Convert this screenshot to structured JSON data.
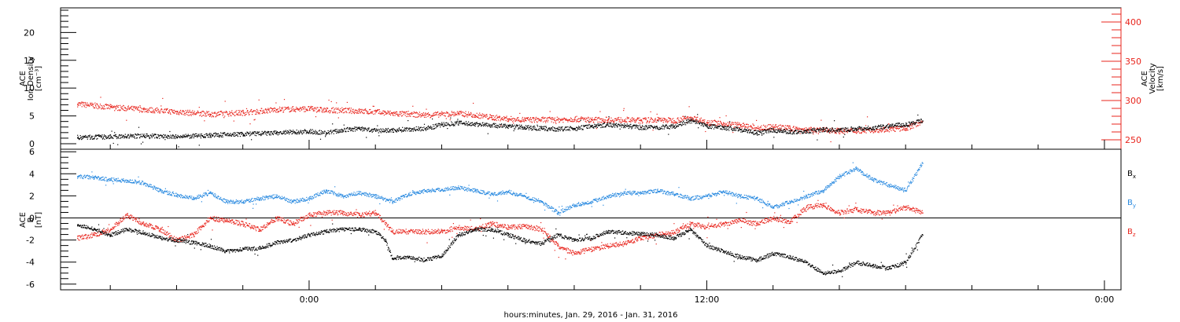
{
  "chart_data": [
    {
      "type": "scatter",
      "panel": "top",
      "ylabel": [
        "ACE",
        "Ion Density",
        "[cm⁻³]"
      ],
      "ylim": [
        0,
        24
      ],
      "yticks": [
        0,
        5,
        10,
        15,
        20
      ],
      "y2label": [
        "ACE",
        "Velocity",
        "[km/s]"
      ],
      "y2lim": [
        245,
        415
      ],
      "y2ticks": [
        250,
        300,
        350,
        400
      ],
      "colors": {
        "density": "#000000",
        "velocity": "#e8241c"
      },
      "series": [
        {
          "name": "",
          "axis": "left",
          "color": "#000000",
          "points": [
            [
              -7.0,
              1.2
            ],
            [
              -6.0,
              1.3
            ],
            [
              -5.0,
              1.5
            ],
            [
              -4.0,
              1.3
            ],
            [
              -3.0,
              1.6
            ],
            [
              -2.0,
              1.8
            ],
            [
              -1.0,
              2.0
            ],
            [
              0.0,
              2.3
            ],
            [
              0.5,
              2.0
            ],
            [
              1.0,
              2.5
            ],
            [
              1.5,
              2.8
            ],
            [
              2.0,
              2.4
            ],
            [
              2.5,
              2.5
            ],
            [
              3.0,
              2.7
            ],
            [
              3.5,
              2.8
            ],
            [
              4.0,
              3.5
            ],
            [
              4.5,
              3.8
            ],
            [
              5.0,
              3.6
            ],
            [
              5.5,
              3.4
            ],
            [
              6.0,
              3.2
            ],
            [
              6.5,
              3.0
            ],
            [
              7.0,
              2.8
            ],
            [
              7.5,
              2.7
            ],
            [
              8.0,
              2.8
            ],
            [
              8.5,
              3.2
            ],
            [
              9.0,
              3.5
            ],
            [
              9.5,
              3.3
            ],
            [
              10.0,
              3.0
            ],
            [
              10.5,
              3.0
            ],
            [
              11.0,
              3.2
            ],
            [
              11.5,
              4.2
            ],
            [
              12.0,
              3.2
            ],
            [
              12.5,
              3.0
            ],
            [
              13.0,
              2.6
            ],
            [
              13.5,
              2.0
            ],
            [
              14.0,
              2.5
            ],
            [
              14.5,
              2.2
            ],
            [
              15.0,
              2.3
            ],
            [
              15.5,
              2.6
            ],
            [
              16.0,
              2.5
            ],
            [
              16.5,
              2.8
            ],
            [
              17.0,
              2.9
            ],
            [
              17.5,
              3.3
            ],
            [
              18.0,
              3.5
            ],
            [
              18.5,
              4.2
            ]
          ]
        },
        {
          "name": "",
          "axis": "right",
          "color": "#e8241c",
          "points": [
            [
              -7.0,
              296
            ],
            [
              -6.0,
              292
            ],
            [
              -5.0,
              289
            ],
            [
              -4.0,
              286
            ],
            [
              -3.0,
              283
            ],
            [
              -2.0,
              285
            ],
            [
              -1.0,
              289
            ],
            [
              0.0,
              290
            ],
            [
              0.5,
              288
            ],
            [
              1.0,
              288
            ],
            [
              1.5,
              287
            ],
            [
              2.0,
              286
            ],
            [
              2.5,
              284
            ],
            [
              3.0,
              283
            ],
            [
              3.5,
              282
            ],
            [
              4.0,
              283
            ],
            [
              4.5,
              284
            ],
            [
              5.0,
              282
            ],
            [
              5.5,
              279
            ],
            [
              6.0,
              277
            ],
            [
              6.5,
              276
            ],
            [
              7.0,
              276
            ],
            [
              7.5,
              276
            ],
            [
              8.0,
              277
            ],
            [
              8.5,
              276
            ],
            [
              9.0,
              276
            ],
            [
              9.5,
              276
            ],
            [
              10.0,
              275
            ],
            [
              10.5,
              276
            ],
            [
              11.0,
              275
            ],
            [
              11.5,
              279
            ],
            [
              12.0,
              273
            ],
            [
              12.5,
              271
            ],
            [
              13.0,
              269
            ],
            [
              13.5,
              265
            ],
            [
              14.0,
              267
            ],
            [
              14.5,
              265
            ],
            [
              15.0,
              263
            ],
            [
              15.5,
              263
            ],
            [
              16.0,
              262
            ],
            [
              16.5,
              262
            ],
            [
              17.0,
              263
            ],
            [
              17.5,
              264
            ],
            [
              18.0,
              265
            ],
            [
              18.5,
              274
            ]
          ]
        }
      ]
    },
    {
      "type": "scatter",
      "panel": "bottom",
      "ylabel": [
        "ACE",
        "B",
        "[nT]"
      ],
      "ylim": [
        -6.3,
        6.3
      ],
      "yticks": [
        -6,
        -4,
        -2,
        0,
        2,
        4,
        6
      ],
      "zero_line": true,
      "series": [
        {
          "name": "Bx",
          "color": "#000000",
          "points": [
            [
              -7.0,
              -0.6
            ],
            [
              -6.5,
              -1.0
            ],
            [
              -6.0,
              -1.5
            ],
            [
              -5.5,
              -1.0
            ],
            [
              -5.0,
              -1.3
            ],
            [
              -4.5,
              -1.8
            ],
            [
              -4.0,
              -2.0
            ],
            [
              -3.5,
              -2.2
            ],
            [
              -3.0,
              -2.5
            ],
            [
              -2.5,
              -3.0
            ],
            [
              -2.0,
              -2.8
            ],
            [
              -1.5,
              -2.7
            ],
            [
              -1.0,
              -2.2
            ],
            [
              -0.5,
              -2.0
            ],
            [
              0.0,
              -1.5
            ],
            [
              0.5,
              -1.2
            ],
            [
              1.0,
              -1.0
            ],
            [
              1.5,
              -1.0
            ],
            [
              2.0,
              -1.2
            ],
            [
              2.3,
              -2.0
            ],
            [
              2.5,
              -3.6
            ],
            [
              3.0,
              -3.5
            ],
            [
              3.5,
              -3.8
            ],
            [
              4.0,
              -3.4
            ],
            [
              4.5,
              -1.5
            ],
            [
              5.0,
              -1.0
            ],
            [
              5.5,
              -1.0
            ],
            [
              6.0,
              -1.5
            ],
            [
              6.5,
              -2.0
            ],
            [
              7.0,
              -2.3
            ],
            [
              7.5,
              -1.5
            ],
            [
              8.0,
              -2.0
            ],
            [
              8.5,
              -1.8
            ],
            [
              9.0,
              -1.2
            ],
            [
              9.5,
              -1.3
            ],
            [
              10.0,
              -1.4
            ],
            [
              10.5,
              -1.5
            ],
            [
              11.0,
              -1.8
            ],
            [
              11.5,
              -1.0
            ],
            [
              12.0,
              -2.5
            ],
            [
              12.5,
              -3.0
            ],
            [
              13.0,
              -3.5
            ],
            [
              13.5,
              -3.8
            ],
            [
              14.0,
              -3.2
            ],
            [
              14.5,
              -3.5
            ],
            [
              15.0,
              -4.0
            ],
            [
              15.5,
              -5.0
            ],
            [
              16.0,
              -4.8
            ],
            [
              16.5,
              -4.0
            ],
            [
              17.0,
              -4.3
            ],
            [
              17.5,
              -4.5
            ],
            [
              18.0,
              -4.0
            ],
            [
              18.5,
              -1.5
            ]
          ]
        },
        {
          "name": "By",
          "color": "#2a8ae0",
          "points": [
            [
              -7.0,
              3.8
            ],
            [
              -6.5,
              3.7
            ],
            [
              -6.0,
              3.5
            ],
            [
              -5.5,
              3.4
            ],
            [
              -5.0,
              3.2
            ],
            [
              -4.5,
              2.5
            ],
            [
              -4.0,
              2.1
            ],
            [
              -3.5,
              1.8
            ],
            [
              -3.0,
              2.3
            ],
            [
              -2.5,
              1.5
            ],
            [
              -2.0,
              1.5
            ],
            [
              -1.5,
              1.8
            ],
            [
              -1.0,
              2.0
            ],
            [
              -0.5,
              1.5
            ],
            [
              0.0,
              1.8
            ],
            [
              0.5,
              2.5
            ],
            [
              1.0,
              2.0
            ],
            [
              1.5,
              2.3
            ],
            [
              2.0,
              2.0
            ],
            [
              2.5,
              1.5
            ],
            [
              3.0,
              2.2
            ],
            [
              3.5,
              2.5
            ],
            [
              4.0,
              2.6
            ],
            [
              4.5,
              2.8
            ],
            [
              5.0,
              2.5
            ],
            [
              5.5,
              2.2
            ],
            [
              6.0,
              2.4
            ],
            [
              6.5,
              2.0
            ],
            [
              7.0,
              1.5
            ],
            [
              7.5,
              0.5
            ],
            [
              8.0,
              1.2
            ],
            [
              8.5,
              1.5
            ],
            [
              9.0,
              2.0
            ],
            [
              9.5,
              2.3
            ],
            [
              10.0,
              2.3
            ],
            [
              10.5,
              2.5
            ],
            [
              11.0,
              2.2
            ],
            [
              11.5,
              1.8
            ],
            [
              12.0,
              2.0
            ],
            [
              12.5,
              2.4
            ],
            [
              13.0,
              2.0
            ],
            [
              13.5,
              1.8
            ],
            [
              14.0,
              1.0
            ],
            [
              14.5,
              1.5
            ],
            [
              15.0,
              2.0
            ],
            [
              15.5,
              2.5
            ],
            [
              16.0,
              3.8
            ],
            [
              16.5,
              4.5
            ],
            [
              17.0,
              3.5
            ],
            [
              17.5,
              3.0
            ],
            [
              18.0,
              2.5
            ],
            [
              18.5,
              5.0
            ]
          ]
        },
        {
          "name": "Bz",
          "color": "#e8241c",
          "points": [
            [
              -7.0,
              -1.8
            ],
            [
              -6.5,
              -1.5
            ],
            [
              -6.0,
              -1.0
            ],
            [
              -5.5,
              0.3
            ],
            [
              -5.0,
              -0.5
            ],
            [
              -4.5,
              -1.0
            ],
            [
              -4.0,
              -2.0
            ],
            [
              -3.5,
              -1.5
            ],
            [
              -3.0,
              0.0
            ],
            [
              -2.5,
              -0.2
            ],
            [
              -2.0,
              -0.5
            ],
            [
              -1.5,
              -1.0
            ],
            [
              -1.0,
              0.0
            ],
            [
              -0.5,
              -0.5
            ],
            [
              0.0,
              0.3
            ],
            [
              0.5,
              0.5
            ],
            [
              1.0,
              0.5
            ],
            [
              1.5,
              0.3
            ],
            [
              2.0,
              0.5
            ],
            [
              2.5,
              -1.2
            ],
            [
              3.0,
              -1.2
            ],
            [
              3.5,
              -1.2
            ],
            [
              4.0,
              -1.2
            ],
            [
              4.5,
              -0.8
            ],
            [
              5.0,
              -1.0
            ],
            [
              5.5,
              -0.5
            ],
            [
              6.0,
              -0.8
            ],
            [
              6.5,
              -0.7
            ],
            [
              7.0,
              -1.0
            ],
            [
              7.5,
              -2.5
            ],
            [
              8.0,
              -3.2
            ],
            [
              8.5,
              -2.8
            ],
            [
              9.0,
              -2.5
            ],
            [
              9.5,
              -2.3
            ],
            [
              10.0,
              -1.8
            ],
            [
              10.5,
              -1.5
            ],
            [
              11.0,
              -1.3
            ],
            [
              11.5,
              -0.5
            ],
            [
              12.0,
              -0.8
            ],
            [
              12.5,
              -0.5
            ],
            [
              13.0,
              -0.2
            ],
            [
              13.5,
              -0.5
            ],
            [
              14.0,
              0.0
            ],
            [
              14.5,
              -0.3
            ],
            [
              15.0,
              1.0
            ],
            [
              15.5,
              1.2
            ],
            [
              16.0,
              0.5
            ],
            [
              16.5,
              0.8
            ],
            [
              17.0,
              0.5
            ],
            [
              17.5,
              0.5
            ],
            [
              18.0,
              1.0
            ],
            [
              18.5,
              0.5
            ]
          ]
        }
      ]
    }
  ],
  "x_axis": {
    "label": "hours:minutes, Jan. 29, 2016 - Jan. 31, 2016",
    "xlim": [
      -7.5,
      24.5
    ],
    "tick_labels": [
      {
        "x": 0,
        "text": "0:00"
      },
      {
        "x": 12,
        "text": "12:00"
      },
      {
        "x": 24,
        "text": "0:00"
      }
    ],
    "minor_ticks": [
      -6,
      -4,
      -2,
      0,
      2,
      4,
      6,
      8,
      10,
      12,
      14,
      16,
      18,
      20,
      22,
      24
    ]
  },
  "legend": [
    {
      "name": "Bx",
      "base": "B",
      "sub": "x",
      "color": "#000000"
    },
    {
      "name": "By",
      "base": "B",
      "sub": "y",
      "color": "#2a8ae0"
    },
    {
      "name": "Bz",
      "base": "B",
      "sub": "z",
      "color": "#e8241c"
    }
  ]
}
